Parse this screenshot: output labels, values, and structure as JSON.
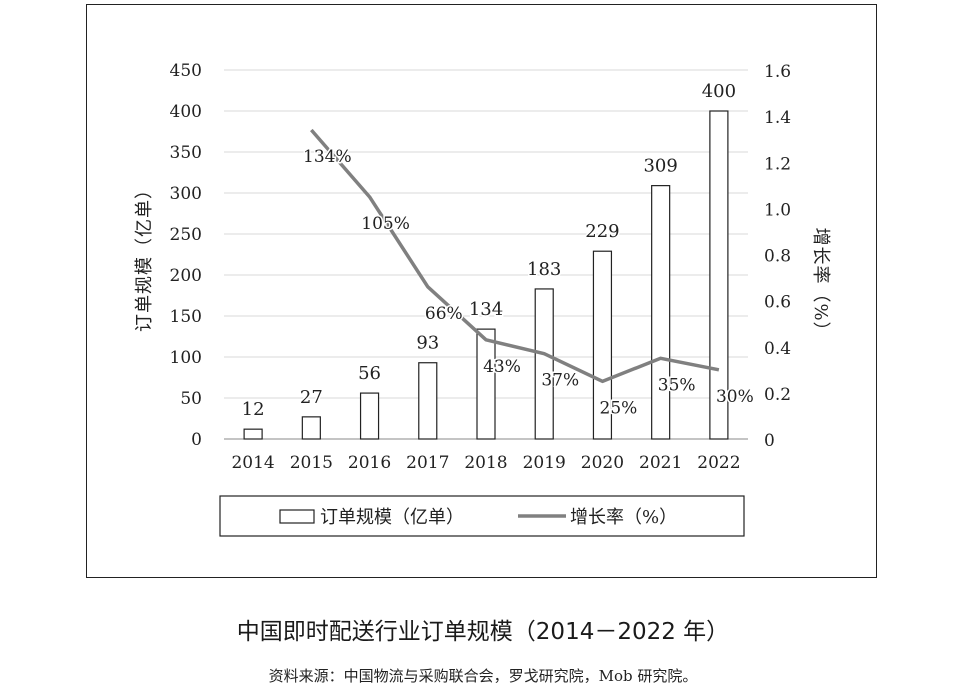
{
  "chart_data": {
    "type": "bar+line",
    "categories": [
      "2014",
      "2015",
      "2016",
      "2017",
      "2018",
      "2019",
      "2020",
      "2021",
      "2022"
    ],
    "series": [
      {
        "name": "订单规模（亿单）",
        "type": "bar",
        "values": [
          12,
          27,
          56,
          93,
          134,
          183,
          229,
          309,
          400
        ],
        "labels": [
          "12",
          "27",
          "56",
          "93",
          "134",
          "183",
          "229",
          "309",
          "400"
        ]
      },
      {
        "name": "增长率（%）",
        "type": "line",
        "values": [
          null,
          1.34,
          1.05,
          0.66,
          0.43,
          0.37,
          0.25,
          0.35,
          0.3
        ],
        "labels": [
          "",
          "134%",
          "105%",
          "66%",
          "43%",
          "37%",
          "25%",
          "35%",
          "30%"
        ]
      }
    ],
    "ylabel_left": "订单规模（亿单）",
    "ylabel_right": "增长率（%）",
    "ylim_left": [
      0,
      450
    ],
    "yticks_left": [
      "0",
      "50",
      "100",
      "150",
      "200",
      "250",
      "300",
      "350",
      "400",
      "450"
    ],
    "ylim_right": [
      0,
      1.6
    ],
    "yticks_right": [
      "0",
      "0.2",
      "0.4",
      "0.6",
      "0.8",
      "1.0",
      "1.2",
      "1.4",
      "1.6"
    ],
    "legend_position": "bottom",
    "grid": true,
    "colors": {
      "bar_fill": "#ffffff",
      "bar_stroke": "#222222",
      "line": "#808080",
      "grid": "#d9d9d9"
    }
  },
  "caption": "中国即时配送行业订单规模（2014－2022 年）",
  "source": "资料来源：中国物流与采购联合会，罗戈研究院，Mob 研究院。"
}
